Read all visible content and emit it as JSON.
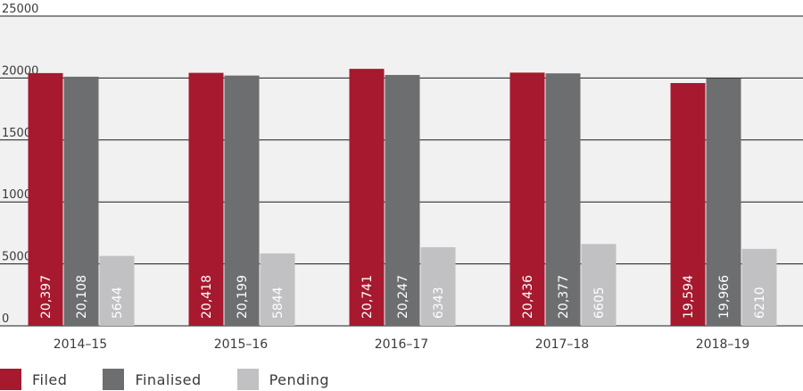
{
  "chart_data": {
    "type": "bar",
    "categories": [
      "2014–15",
      "2015–16",
      "2016–17",
      "2017–18",
      "2018–19"
    ],
    "series": [
      {
        "name": "Filed",
        "color": "#a6192e",
        "values": [
          20397,
          20418,
          20741,
          20436,
          19594
        ],
        "labels": [
          "20,397",
          "20,418",
          "20,741",
          "20,436",
          "19,594"
        ]
      },
      {
        "name": "Finalised",
        "color": "#6d6e70",
        "values": [
          20108,
          20199,
          20247,
          20377,
          19966
        ],
        "labels": [
          "20,108",
          "20,199",
          "20,247",
          "20,377",
          "19,966"
        ]
      },
      {
        "name": "Pending",
        "color": "#c1c1c3",
        "values": [
          5644,
          5844,
          6343,
          6605,
          6210
        ],
        "labels": [
          "5644",
          "5844",
          "6343",
          "6605",
          "6210"
        ]
      }
    ],
    "yticks": [
      "0",
      "5000",
      "10000",
      "15000",
      "20000",
      "25000"
    ],
    "ylim": [
      0,
      25000
    ],
    "grid": true,
    "plot_background": "#f1f1f2",
    "legend_position": "bottom-left"
  }
}
